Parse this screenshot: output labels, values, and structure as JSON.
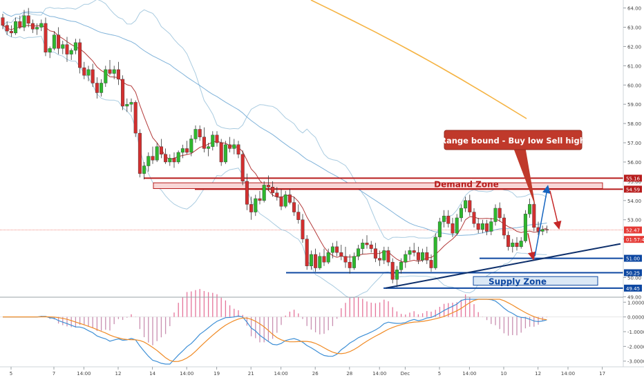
{
  "chart_data": [
    {
      "type": "candlestick",
      "title": "",
      "price_axis": {
        "ylim": [
          48.8,
          64.2
        ],
        "ticks": [
          "64.00",
          "63.00",
          "62.00",
          "61.00",
          "60.00",
          "59.00",
          "58.00",
          "57.00",
          "56.00",
          "55.00",
          "54.00",
          "53.00",
          "52.00",
          "51.00",
          "50.00",
          "49.00"
        ]
      },
      "price_tags": [
        {
          "label": "55.16",
          "value": 55.16,
          "color": "#b71c1c"
        },
        {
          "label": "54.59",
          "value": 54.59,
          "color": "#b71c1c"
        },
        {
          "label": "52.47",
          "value": 52.47,
          "color": "#e53935"
        },
        {
          "label": "01:57:45",
          "value": 51.98,
          "color": "#e53935"
        },
        {
          "label": "51.00",
          "value": 51.0,
          "color": "#0d47a1"
        },
        {
          "label": "50.25",
          "value": 50.25,
          "color": "#0d47a1"
        },
        {
          "label": "49.45",
          "value": 49.45,
          "color": "#0d47a1"
        }
      ],
      "x_axis": {
        "labels": [
          {
            "label": "5",
            "i": 0
          },
          {
            "label": "7",
            "i": 10
          },
          {
            "label": "14:00",
            "i": 17
          },
          {
            "label": "12",
            "i": 25
          },
          {
            "label": "14",
            "i": 33
          },
          {
            "label": "14:00",
            "i": 41
          },
          {
            "label": "19",
            "i": 48
          },
          {
            "label": "21",
            "i": 56
          },
          {
            "label": "14:00",
            "i": 63
          },
          {
            "label": "26",
            "i": 71
          },
          {
            "label": "28",
            "i": 79
          },
          {
            "label": "14:00",
            "i": 86
          },
          {
            "label": "Dec",
            "i": 92
          },
          {
            "label": "5",
            "i": 100
          },
          {
            "label": "14:00",
            "i": 107
          },
          {
            "label": "10",
            "i": 115
          },
          {
            "label": "12",
            "i": 123
          },
          {
            "label": "14:00",
            "i": 130
          },
          {
            "label": "17",
            "i": 138
          }
        ]
      },
      "candles": [
        [
          63.5,
          63.7,
          62.9,
          63.1
        ],
        [
          63.1,
          63.3,
          62.6,
          62.8
        ],
        [
          62.8,
          63.1,
          62.5,
          62.7
        ],
        [
          62.7,
          63.5,
          62.6,
          63.3
        ],
        [
          63.3,
          63.6,
          62.9,
          63.0
        ],
        [
          63.0,
          63.9,
          62.8,
          63.6
        ],
        [
          63.6,
          64.0,
          63.0,
          63.2
        ],
        [
          63.2,
          63.4,
          62.7,
          62.9
        ],
        [
          62.9,
          63.2,
          62.6,
          63.0
        ],
        [
          63.0,
          63.4,
          62.8,
          63.2
        ],
        [
          63.2,
          63.5,
          61.5,
          61.7
        ],
        [
          61.7,
          62.0,
          61.4,
          61.9
        ],
        [
          61.9,
          62.8,
          61.8,
          62.6
        ],
        [
          62.6,
          63.0,
          61.6,
          61.9
        ],
        [
          61.9,
          62.3,
          61.6,
          62.1
        ],
        [
          62.1,
          62.5,
          61.2,
          61.6
        ],
        [
          61.6,
          61.9,
          61.3,
          61.8
        ],
        [
          61.8,
          62.4,
          61.6,
          62.2
        ],
        [
          62.2,
          62.4,
          60.6,
          60.9
        ],
        [
          60.9,
          61.2,
          60.3,
          60.5
        ],
        [
          60.5,
          61.0,
          60.2,
          60.8
        ],
        [
          60.8,
          61.1,
          59.9,
          60.1
        ],
        [
          60.1,
          60.4,
          59.3,
          59.6
        ],
        [
          59.6,
          60.3,
          59.4,
          60.1
        ],
        [
          60.1,
          61.0,
          59.9,
          60.8
        ],
        [
          60.8,
          61.3,
          60.5,
          60.6
        ],
        [
          60.6,
          61.0,
          60.3,
          60.8
        ],
        [
          60.8,
          61.2,
          60.0,
          60.3
        ],
        [
          60.3,
          60.5,
          58.7,
          58.9
        ],
        [
          58.9,
          59.3,
          58.6,
          59.0
        ],
        [
          59.0,
          59.3,
          58.6,
          59.1
        ],
        [
          59.1,
          59.2,
          57.3,
          57.5
        ],
        [
          57.5,
          57.7,
          55.2,
          55.4
        ],
        [
          55.4,
          56.0,
          55.1,
          55.8
        ],
        [
          55.8,
          56.5,
          55.5,
          56.3
        ],
        [
          56.3,
          56.8,
          55.9,
          56.1
        ],
        [
          56.1,
          57.0,
          56.0,
          56.8
        ],
        [
          56.8,
          57.2,
          56.2,
          56.4
        ],
        [
          56.4,
          56.7,
          55.9,
          56.0
        ],
        [
          56.0,
          56.4,
          55.8,
          56.2
        ],
        [
          56.2,
          56.5,
          55.7,
          56.0
        ],
        [
          56.0,
          56.6,
          55.9,
          56.5
        ],
        [
          56.5,
          56.9,
          56.2,
          56.7
        ],
        [
          56.7,
          57.1,
          56.4,
          56.5
        ],
        [
          56.5,
          57.4,
          56.3,
          57.2
        ],
        [
          57.2,
          57.9,
          57.0,
          57.7
        ],
        [
          57.7,
          57.9,
          57.1,
          57.3
        ],
        [
          57.3,
          57.8,
          56.5,
          56.7
        ],
        [
          56.7,
          57.0,
          56.3,
          56.8
        ],
        [
          56.8,
          57.6,
          56.6,
          57.4
        ],
        [
          57.4,
          57.6,
          56.8,
          57.0
        ],
        [
          57.0,
          57.2,
          55.8,
          56.0
        ],
        [
          56.0,
          57.1,
          55.9,
          56.9
        ],
        [
          56.9,
          57.3,
          56.5,
          56.7
        ],
        [
          56.7,
          57.2,
          56.4,
          56.9
        ],
        [
          56.9,
          57.1,
          56.2,
          56.4
        ],
        [
          56.4,
          56.6,
          54.8,
          55.0
        ],
        [
          55.0,
          55.4,
          53.5,
          53.8
        ],
        [
          53.8,
          54.2,
          53.0,
          53.4
        ],
        [
          53.4,
          54.3,
          53.2,
          54.1
        ],
        [
          54.1,
          54.5,
          53.8,
          54.0
        ],
        [
          54.0,
          55.0,
          53.9,
          54.8
        ],
        [
          54.8,
          55.3,
          54.5,
          54.7
        ],
        [
          54.7,
          55.0,
          54.2,
          54.4
        ],
        [
          54.4,
          54.7,
          54.0,
          54.2
        ],
        [
          54.2,
          54.6,
          53.5,
          53.7
        ],
        [
          53.7,
          54.5,
          53.6,
          54.3
        ],
        [
          54.3,
          54.6,
          53.8,
          53.9
        ],
        [
          53.9,
          54.2,
          53.2,
          53.4
        ],
        [
          53.4,
          53.8,
          52.8,
          53.0
        ],
        [
          53.0,
          53.3,
          51.8,
          52.0
        ],
        [
          52.0,
          52.2,
          50.4,
          50.6
        ],
        [
          50.6,
          51.4,
          50.4,
          51.2
        ],
        [
          51.2,
          51.5,
          50.3,
          50.5
        ],
        [
          50.5,
          51.3,
          50.4,
          51.1
        ],
        [
          51.1,
          51.5,
          50.6,
          50.8
        ],
        [
          50.8,
          51.5,
          50.7,
          51.3
        ],
        [
          51.3,
          51.8,
          51.0,
          51.6
        ],
        [
          51.6,
          51.9,
          51.1,
          51.3
        ],
        [
          51.3,
          51.7,
          50.9,
          51.1
        ],
        [
          51.1,
          51.6,
          50.5,
          50.8
        ],
        [
          50.8,
          51.2,
          50.2,
          50.5
        ],
        [
          50.5,
          51.3,
          50.4,
          51.1
        ],
        [
          51.1,
          51.7,
          50.9,
          51.5
        ],
        [
          51.5,
          52.0,
          51.2,
          51.8
        ],
        [
          51.8,
          52.2,
          51.5,
          51.7
        ],
        [
          51.7,
          51.9,
          51.3,
          51.5
        ],
        [
          51.5,
          51.8,
          50.8,
          51.0
        ],
        [
          51.0,
          51.4,
          50.6,
          50.9
        ],
        [
          50.9,
          51.6,
          50.7,
          51.4
        ],
        [
          51.4,
          51.6,
          50.6,
          50.8
        ],
        [
          50.8,
          51.0,
          49.7,
          49.9
        ],
        [
          49.9,
          50.6,
          49.5,
          50.4
        ],
        [
          50.4,
          51.0,
          50.2,
          50.8
        ],
        [
          50.8,
          51.4,
          50.5,
          51.2
        ],
        [
          51.2,
          51.6,
          50.9,
          51.4
        ],
        [
          51.4,
          51.8,
          51.1,
          51.3
        ],
        [
          51.3,
          51.6,
          50.7,
          50.9
        ],
        [
          50.9,
          51.5,
          50.8,
          51.3
        ],
        [
          51.3,
          51.6,
          50.7,
          50.9
        ],
        [
          50.9,
          51.2,
          50.3,
          50.5
        ],
        [
          50.5,
          52.3,
          50.4,
          52.1
        ],
        [
          52.1,
          53.1,
          51.9,
          52.9
        ],
        [
          52.9,
          53.5,
          52.6,
          53.2
        ],
        [
          53.2,
          53.5,
          52.6,
          52.8
        ],
        [
          52.8,
          53.1,
          52.1,
          52.3
        ],
        [
          52.3,
          53.3,
          52.2,
          53.1
        ],
        [
          53.1,
          53.8,
          52.9,
          53.6
        ],
        [
          53.6,
          54.2,
          53.4,
          54.0
        ],
        [
          54.0,
          54.3,
          53.2,
          53.4
        ],
        [
          53.4,
          53.6,
          52.6,
          52.8
        ],
        [
          52.8,
          53.1,
          52.3,
          52.5
        ],
        [
          52.5,
          53.0,
          52.3,
          52.8
        ],
        [
          52.8,
          53.0,
          52.2,
          52.4
        ],
        [
          52.4,
          53.1,
          52.2,
          52.9
        ],
        [
          52.9,
          53.8,
          52.7,
          53.6
        ],
        [
          53.6,
          53.9,
          52.9,
          53.1
        ],
        [
          53.1,
          53.3,
          52.0,
          52.2
        ],
        [
          52.2,
          52.4,
          51.4,
          51.6
        ],
        [
          51.6,
          52.0,
          51.3,
          51.8
        ],
        [
          51.8,
          52.1,
          51.4,
          51.6
        ],
        [
          51.6,
          52.1,
          51.5,
          51.9
        ],
        [
          51.9,
          53.5,
          51.8,
          53.3
        ],
        [
          53.3,
          54.1,
          53.1,
          53.8
        ],
        [
          53.8,
          54.0,
          52.4,
          52.6
        ],
        [
          52.6,
          52.9,
          52.2,
          52.4
        ],
        [
          52.4,
          52.7,
          52.2,
          52.5
        ],
        [
          52.5,
          52.7,
          52.3,
          52.47
        ]
      ],
      "zones": [
        {
          "label": "Demand Zone",
          "top": 54.92,
          "bottom": 54.62
        },
        {
          "label": "Supply Zone",
          "top": 50.05,
          "bottom": 49.6
        }
      ],
      "annotation": {
        "label": "Range bound - Buy low Sell high"
      },
      "oscillator": {
        "ylim": [
          -3.2,
          1.2
        ],
        "ticks": [
          "1.0000",
          "0.0000",
          "-1.0000",
          "-2.0000",
          "-3.0000"
        ]
      }
    }
  ]
}
